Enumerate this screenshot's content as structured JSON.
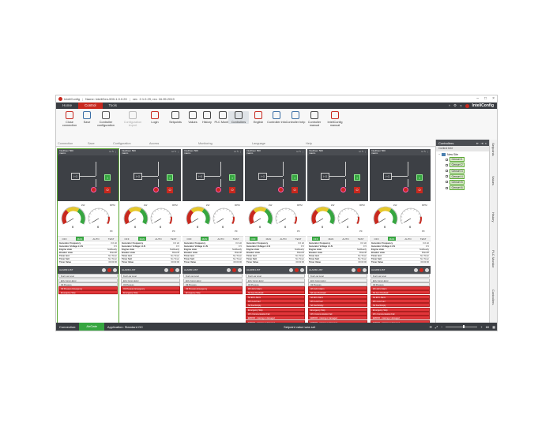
{
  "window": {
    "app_name": "InteliConfig",
    "name_label": "Name: InteliGen-500-1.0.0.20",
    "version_label": "ver.: 2.1.0.29, rev. 16.05.2019"
  },
  "menu": {
    "tabs": [
      "Home",
      "Control",
      "Tools"
    ],
    "brand": "InteliConfig"
  },
  "ribbon": {
    "items": [
      {
        "label": "Close connection",
        "icon": "close-connection-icon",
        "color": "#c8281e"
      },
      {
        "label": "Save",
        "icon": "save-icon",
        "color": "#3a6ea5"
      },
      {
        "label": "Controller configuration",
        "icon": "gear-icon",
        "color": "#555555"
      },
      {
        "label": "Configuration import",
        "icon": "import-icon",
        "color": "#bbbbbb",
        "disabled": true
      },
      {
        "label": "Login",
        "icon": "login-icon",
        "color": "#c8281e"
      },
      {
        "label": "Setpoints",
        "icon": "setpoints-icon",
        "color": "#444444"
      },
      {
        "label": "Values",
        "icon": "values-icon",
        "color": "#444444"
      },
      {
        "label": "History",
        "icon": "history-icon",
        "color": "#444444"
      },
      {
        "label": "PLC Monitor",
        "icon": "plc-monitor-icon",
        "color": "#444444"
      },
      {
        "label": "Controllers",
        "icon": "controllers-icon",
        "color": "#444444",
        "selected": true
      },
      {
        "label": "English",
        "icon": "language-icon",
        "color": "#c8281e"
      },
      {
        "label": "Controller info",
        "icon": "info-icon",
        "color": "#3a6ea5"
      },
      {
        "label": "Controller help",
        "icon": "help-icon",
        "color": "#3a6ea5"
      },
      {
        "label": "Controller manual",
        "icon": "manual-icon",
        "color": "#444444"
      },
      {
        "label": "InteliConfig manual",
        "icon": "app-manual-icon",
        "color": "#c8281e"
      }
    ],
    "groups": [
      "Connection",
      "Save",
      "Configuration",
      "Access",
      "Monitoring",
      "Language",
      "Help"
    ]
  },
  "controllers": [
    {
      "head1": "InteliGen 500",
      "head2": "macro",
      "selected": true,
      "rpm": "0",
      "mode_active": "MAN",
      "alarms": [
        {
          "text": "Fuel Low Level",
          "red": false
        },
        {
          "text": "ECU Comm Error",
          "red": false
        },
        {
          "text": "Oil Pressure",
          "red": false
        },
        {
          "text": "Oil Pressure Emergency",
          "red": true
        },
        {
          "text": "Emergency Stop",
          "red": true
        }
      ]
    },
    {
      "head1": "InteliGen 500",
      "head2": "macro",
      "selected": false,
      "rpm": "0",
      "mode_active": "MAN",
      "alarms": [
        {
          "text": "Fuel Low Level",
          "red": false
        },
        {
          "text": "ECU Comm Error",
          "red": false
        },
        {
          "text": "Oil Pressure",
          "red": false
        },
        {
          "text": "Oil Pressure Emergency",
          "red": true
        },
        {
          "text": "Emergency Stop",
          "red": true
        }
      ]
    },
    {
      "head1": "InteliGen 500",
      "head2": "macro",
      "selected": false,
      "rpm": "0",
      "mode_active": "MAN",
      "alarms": [
        {
          "text": "Fuel Low Level",
          "red": false
        },
        {
          "text": "ECU Comm Error",
          "red": false
        },
        {
          "text": "Oil Pressure",
          "red": false
        },
        {
          "text": "Oil Pressure Emergency",
          "red": true
        },
        {
          "text": "Emergency Stop",
          "red": true
        }
      ]
    },
    {
      "head1": "InteliGen 500",
      "head2": "macro",
      "selected": false,
      "rpm": "0",
      "mode_active": "OFF",
      "alarms": [
        {
          "text": "Fuel Low Level",
          "red": false
        },
        {
          "text": "ECU Comm Error",
          "red": false
        },
        {
          "text": "Oil Pressure",
          "red": false
        },
        {
          "text": "Wrn ECU Alarm",
          "red": true
        },
        {
          "text": "Sd Gen Overload",
          "red": true
        },
        {
          "text": "Sd ECU Alarm",
          "red": true
        },
        {
          "text": "Wrn Low Fuel",
          "red": true
        },
        {
          "text": "Sd Fuel Empty",
          "red": true
        },
        {
          "text": "Emergency Stop",
          "red": true
        },
        {
          "text": "Wrn Communication Fail",
          "red": true
        },
        {
          "text": "ERROR - missing or damaged",
          "red": true
        },
        {
          "text": "ERROR - missing or damaged",
          "red": true
        }
      ]
    },
    {
      "head1": "InteliGen 500",
      "head2": "macro",
      "selected": false,
      "rpm": "0",
      "mode_active": "OFF",
      "alarms": [
        {
          "text": "Fuel Low Level",
          "red": false
        },
        {
          "text": "ECU Comm Error",
          "red": false
        },
        {
          "text": "Oil Pressure",
          "red": false
        },
        {
          "text": "Wrn ECU Alarm",
          "red": true
        },
        {
          "text": "Sd Gen Overload",
          "red": true
        },
        {
          "text": "Sd ECU Alarm",
          "red": true
        },
        {
          "text": "Wrn Low Fuel",
          "red": true
        },
        {
          "text": "Sd Fuel Empty",
          "red": true
        },
        {
          "text": "Emergency Stop",
          "red": true
        },
        {
          "text": "Wrn Communication Fail",
          "red": true
        },
        {
          "text": "ERROR - missing or damaged",
          "red": true
        },
        {
          "text": "ERROR - missing or damaged",
          "red": true
        }
      ]
    },
    {
      "head1": "InteliGen 500",
      "head2": "macro",
      "selected": false,
      "rpm": "0",
      "mode_active": "MAN",
      "alarms": [
        {
          "text": "Fuel Low Level",
          "red": false
        },
        {
          "text": "ECU Comm Error",
          "red": false
        },
        {
          "text": "Oil Pressure",
          "red": false
        },
        {
          "text": "Wrn ECU Alarm",
          "red": true
        },
        {
          "text": "Sd Gen Overload",
          "red": true
        },
        {
          "text": "Sd ECU Alarm",
          "red": true
        },
        {
          "text": "Wrn Low Fuel",
          "red": true
        },
        {
          "text": "Sd Fuel Empty",
          "red": true
        },
        {
          "text": "Emergency Stop",
          "red": true
        },
        {
          "text": "Wrn Communication Fail",
          "red": true
        },
        {
          "text": "ERROR - missing or damaged",
          "red": true
        },
        {
          "text": "ERROR - missing or damaged",
          "red": true
        }
      ]
    }
  ],
  "controller_common": {
    "breaker_on": "I",
    "breaker_off": "O",
    "box_label": "I~G",
    "gauge_left_unit": "kW",
    "gauge_right_unit": "RPM",
    "gauge_pf_label": "PF",
    "modes": [
      "OFF",
      "MAN",
      "AUTO",
      "TEST"
    ],
    "values": [
      {
        "k": "Generator Frequency",
        "v": "0.0 Hz"
      },
      {
        "k": "Generator Voltage L1-N",
        "v": "0 V"
      },
      {
        "k": "Engine state",
        "v": "NotReady"
      },
      {
        "k": "Breaker state",
        "v": "BrksOff"
      },
      {
        "k": "Timer text",
        "v": "No Timer"
      },
      {
        "k": "Timer Sett",
        "v": "No Timer"
      },
      {
        "k": "Timer Value",
        "v": "00:00:00"
      }
    ],
    "alarm_title": "ALARM LIST"
  },
  "sidebar": {
    "title": "Controllers",
    "subtitle": "Control tree",
    "site": "New Site",
    "gensets": [
      "Genset 1",
      "Genset 2",
      "Genset 3",
      "Genset 4",
      "Genset 5",
      "Genset 6"
    ],
    "vtabs": [
      "Setpoints",
      "Values",
      "History",
      "PLC Monitor",
      "Controllers"
    ]
  },
  "status": {
    "connection_label": "Connection:",
    "connection_value": "AirGate",
    "application": "Application: Standard GC",
    "message": "Setpoint value was set",
    "zoom": "60"
  }
}
